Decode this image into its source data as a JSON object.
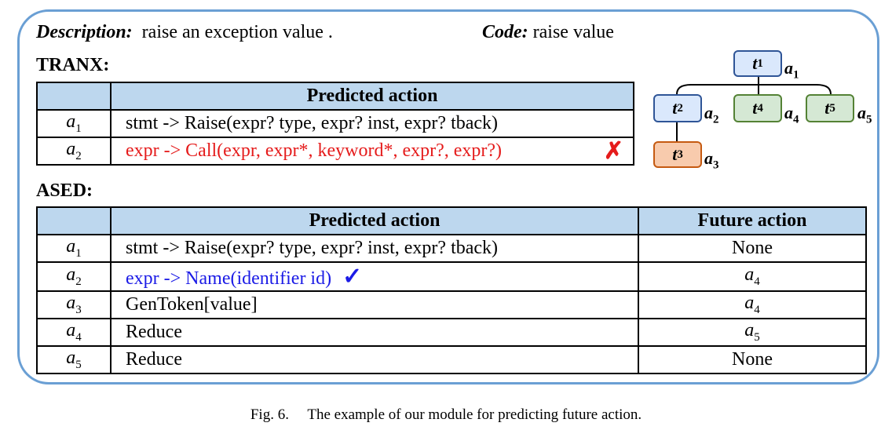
{
  "header": {
    "description_label": "Description:",
    "description_text": "raise an exception value .",
    "code_label": "Code:",
    "code_text": "raise value"
  },
  "tranx": {
    "title": "TRANX:",
    "column_header": "Predicted action",
    "rows": [
      {
        "idx": "a",
        "sub": "1",
        "action": "stmt -> Raise(expr? type, expr? inst, expr? tback)"
      },
      {
        "idx": "a",
        "sub": "2",
        "action": "expr -> Call(expr, expr*,  keyword*, expr?, expr?)",
        "mark": "✗"
      }
    ]
  },
  "ased": {
    "title": "ASED:",
    "column_headers": [
      "Predicted action",
      "Future action"
    ],
    "rows": [
      {
        "idx": "a",
        "sub": "1",
        "action": "stmt -> Raise(expr? type, expr? inst, expr? tback)",
        "future": "None"
      },
      {
        "idx": "a",
        "sub": "2",
        "action": "expr -> Name(identifier id)",
        "mark": "✓",
        "future": "a",
        "future_sub": "4"
      },
      {
        "idx": "a",
        "sub": "3",
        "action": "GenToken[value]",
        "future": "a",
        "future_sub": "4"
      },
      {
        "idx": "a",
        "sub": "4",
        "action": "Reduce",
        "future": "a",
        "future_sub": "5"
      },
      {
        "idx": "a",
        "sub": "5",
        "action": "Reduce",
        "future": "None"
      }
    ]
  },
  "tree": {
    "nodes": [
      {
        "t": "t",
        "tsub": "1",
        "a": "a",
        "asub": "1",
        "color": "blue"
      },
      {
        "t": "t",
        "tsub": "2",
        "a": "a",
        "asub": "2",
        "color": "blue"
      },
      {
        "t": "t",
        "tsub": "4",
        "a": "a",
        "asub": "4",
        "color": "green"
      },
      {
        "t": "t",
        "tsub": "5",
        "a": "a",
        "asub": "5",
        "color": "green"
      },
      {
        "t": "t",
        "tsub": "3",
        "a": "a",
        "asub": "3",
        "color": "orange"
      }
    ],
    "colors": {
      "blue_fill": "#dae8fc",
      "blue_stroke": "#2f5597",
      "green_fill": "#d5e8d4",
      "green_stroke": "#548235",
      "orange_fill": "#f8cbad",
      "orange_stroke": "#c55a11"
    }
  },
  "caption": {
    "label": "Fig. 6.",
    "text": "The example of our module for predicting future action."
  }
}
